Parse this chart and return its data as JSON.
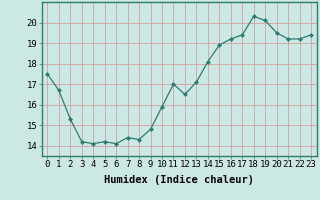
{
  "x": [
    0,
    1,
    2,
    3,
    4,
    5,
    6,
    7,
    8,
    9,
    10,
    11,
    12,
    13,
    14,
    15,
    16,
    17,
    18,
    19,
    20,
    21,
    22,
    23
  ],
  "y": [
    17.5,
    16.7,
    15.3,
    14.2,
    14.1,
    14.2,
    14.1,
    14.4,
    14.3,
    14.8,
    15.9,
    17.0,
    16.5,
    17.1,
    18.1,
    18.9,
    19.2,
    19.4,
    20.3,
    20.1,
    19.5,
    19.2,
    19.2,
    19.4
  ],
  "line_color": "#2e7d6e",
  "marker": "D",
  "marker_size": 2,
  "bg_color": "#cce8e4",
  "grid_color": "#d4a0a0",
  "xlabel": "Humidex (Indice chaleur)",
  "ylabel": "",
  "ylim": [
    13.5,
    21.0
  ],
  "xlim": [
    -0.5,
    23.5
  ],
  "yticks": [
    14,
    15,
    16,
    17,
    18,
    19,
    20
  ],
  "xticks": [
    0,
    1,
    2,
    3,
    4,
    5,
    6,
    7,
    8,
    9,
    10,
    11,
    12,
    13,
    14,
    15,
    16,
    17,
    18,
    19,
    20,
    21,
    22,
    23
  ],
  "font_size": 6.5,
  "xlabel_fontsize": 7.5
}
